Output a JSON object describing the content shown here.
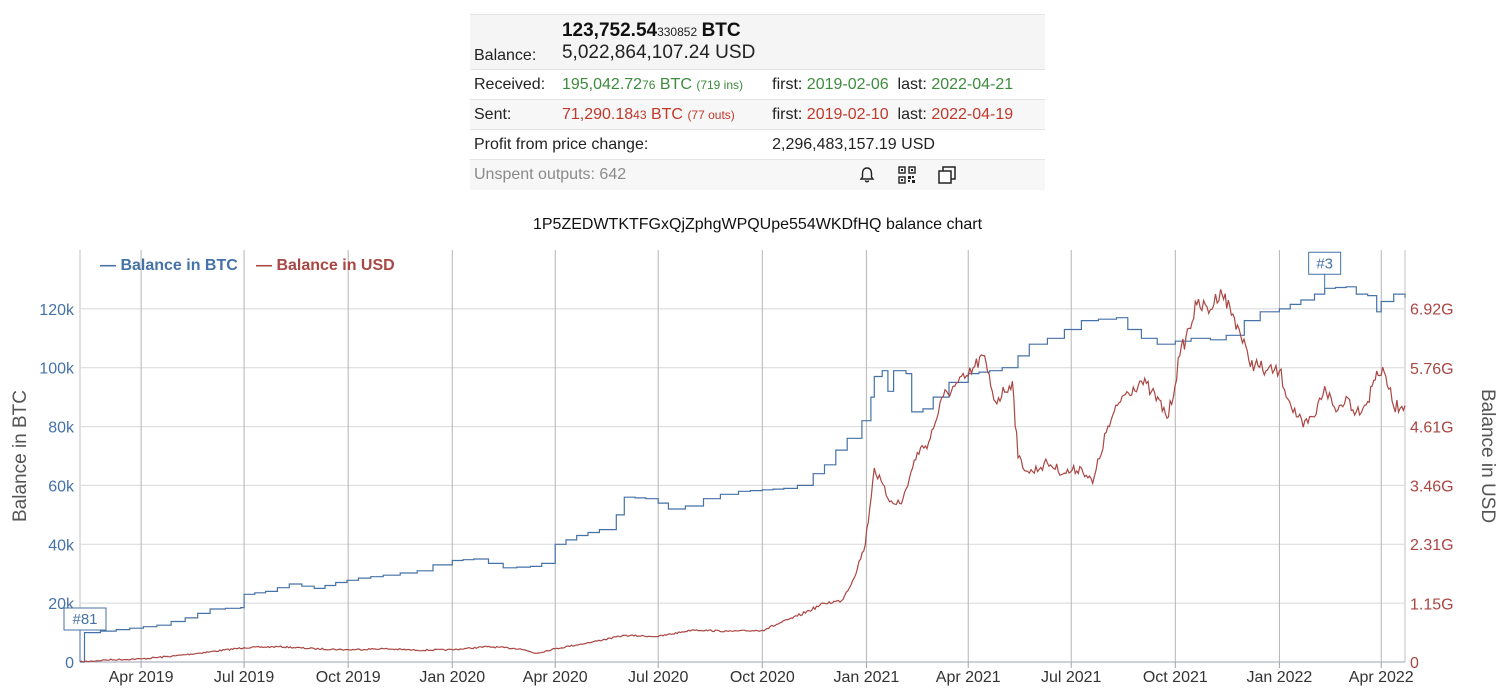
{
  "summary": {
    "btc_main": "123,752.54",
    "btc_small": "330852",
    "btc_unit": "BTC",
    "balance_label": "Balance:",
    "balance_usd": "5,022,864,107.24 USD",
    "received_label": "Received:",
    "received_main": "195,042.72",
    "received_small": "76",
    "received_unit": "BTC",
    "received_count": "(719 ins)",
    "received_first_label": "first:",
    "received_first": "2019-02-06",
    "received_last_label": "last:",
    "received_last": "2022-04-21",
    "sent_label": "Sent:",
    "sent_main": "71,290.18",
    "sent_small": "43",
    "sent_unit": "BTC",
    "sent_count": "(77 outs)",
    "sent_first_label": "first:",
    "sent_first": "2019-02-10",
    "sent_last_label": "last:",
    "sent_last": "2022-04-19",
    "profit_label": "Profit from price change:",
    "profit_value": "2,296,483,157.19 USD",
    "unspent": "Unspent outputs: 642",
    "icons": [
      "bell-icon",
      "qr-code-icon",
      "copy-icon"
    ]
  },
  "colors": {
    "btc": "#4572a7",
    "usd": "#aa4643",
    "green": "#3d8b3d",
    "red": "#c0392b"
  },
  "chart_data": {
    "type": "line",
    "title": "1P5ZEDWTKTFGxQjZphgWPQUpe554WKDfHQ balance chart",
    "xlabel": "",
    "ylabel_left": "Balance in BTC",
    "ylabel_right": "Balance in USD",
    "x_ticks": [
      "Apr 2019",
      "Jul 2019",
      "Oct 2019",
      "Jan 2020",
      "Apr 2020",
      "Jul 2020",
      "Oct 2020",
      "Jan 2021",
      "Apr 2021",
      "Jul 2021",
      "Oct 2021",
      "Jan 2022",
      "Apr 2022"
    ],
    "x_tick_dates": [
      "2019-04-01",
      "2019-07-01",
      "2019-10-01",
      "2020-01-01",
      "2020-04-01",
      "2020-07-01",
      "2020-10-01",
      "2021-01-01",
      "2021-04-01",
      "2021-07-01",
      "2021-10-01",
      "2022-01-01",
      "2022-04-01"
    ],
    "xlim": [
      "2019-02-06",
      "2022-04-22"
    ],
    "y_left_ticks": [
      "0",
      "20k",
      "40k",
      "60k",
      "80k",
      "100k",
      "120k"
    ],
    "y_left_lim": [
      0,
      140000
    ],
    "y_right_ticks": [
      "0",
      "1.15G",
      "2.31G",
      "3.46G",
      "4.61G",
      "5.76G",
      "6.92G"
    ],
    "y_right_values": [
      0,
      1150000000,
      2310000000,
      3460000000,
      4610000000,
      5760000000,
      6920000000
    ],
    "y_right_lim": [
      0,
      8070000000
    ],
    "legend": "top-left",
    "grid": true,
    "flags": [
      {
        "label": "#81",
        "date": "2019-02-06",
        "series": "Balance in BTC"
      },
      {
        "label": "#3",
        "date": "2022-02-10",
        "series": "Balance in BTC"
      }
    ],
    "series": [
      {
        "name": "Balance in BTC",
        "axis": "left",
        "color": "#4572a7",
        "points": [
          [
            "2019-02-06",
            0
          ],
          [
            "2019-02-10",
            10000
          ],
          [
            "2019-03-10",
            11000
          ],
          [
            "2019-04-15",
            12500
          ],
          [
            "2019-05-10",
            15000
          ],
          [
            "2019-06-01",
            18000
          ],
          [
            "2019-06-28",
            18500
          ],
          [
            "2019-07-01",
            23000
          ],
          [
            "2019-07-20",
            24000
          ],
          [
            "2019-08-10",
            26500
          ],
          [
            "2019-09-01",
            25000
          ],
          [
            "2019-09-20",
            27000
          ],
          [
            "2019-10-10",
            28500
          ],
          [
            "2019-11-01",
            29500
          ],
          [
            "2019-12-01",
            31000
          ],
          [
            "2019-12-15",
            33000
          ],
          [
            "2020-01-01",
            34500
          ],
          [
            "2020-01-20",
            35000
          ],
          [
            "2020-02-15",
            32000
          ],
          [
            "2020-03-10",
            32500
          ],
          [
            "2020-03-20",
            33500
          ],
          [
            "2020-04-01",
            40000
          ],
          [
            "2020-04-20",
            43000
          ],
          [
            "2020-05-10",
            45000
          ],
          [
            "2020-05-25",
            50000
          ],
          [
            "2020-06-01",
            56000
          ],
          [
            "2020-06-20",
            55500
          ],
          [
            "2020-07-01",
            54000
          ],
          [
            "2020-07-10",
            52000
          ],
          [
            "2020-07-25",
            53000
          ],
          [
            "2020-08-10",
            55500
          ],
          [
            "2020-08-25",
            57000
          ],
          [
            "2020-09-10",
            58000
          ],
          [
            "2020-10-01",
            58500
          ],
          [
            "2020-10-20",
            59000
          ],
          [
            "2020-11-01",
            60000
          ],
          [
            "2020-11-15",
            64000
          ],
          [
            "2020-11-25",
            67000
          ],
          [
            "2020-12-05",
            72000
          ],
          [
            "2020-12-15",
            76000
          ],
          [
            "2020-12-28",
            82000
          ],
          [
            "2021-01-05",
            90000
          ],
          [
            "2021-01-08",
            97000
          ],
          [
            "2021-01-15",
            99000
          ],
          [
            "2021-01-20",
            92000
          ],
          [
            "2021-01-25",
            99000
          ],
          [
            "2021-02-05",
            98000
          ],
          [
            "2021-02-10",
            85000
          ],
          [
            "2021-02-20",
            86000
          ],
          [
            "2021-03-01",
            90000
          ],
          [
            "2021-03-15",
            95000
          ],
          [
            "2021-04-01",
            98000
          ],
          [
            "2021-04-20",
            99000
          ],
          [
            "2021-05-01",
            100000
          ],
          [
            "2021-05-15",
            104000
          ],
          [
            "2021-05-25",
            108000
          ],
          [
            "2021-06-10",
            110000
          ],
          [
            "2021-06-25",
            113000
          ],
          [
            "2021-07-10",
            116000
          ],
          [
            "2021-07-25",
            116500
          ],
          [
            "2021-08-10",
            117000
          ],
          [
            "2021-08-20",
            113000
          ],
          [
            "2021-09-01",
            110000
          ],
          [
            "2021-09-15",
            108000
          ],
          [
            "2021-10-01",
            109000
          ],
          [
            "2021-10-15",
            110000
          ],
          [
            "2021-11-01",
            109500
          ],
          [
            "2021-11-15",
            111000
          ],
          [
            "2021-12-01",
            116000
          ],
          [
            "2021-12-15",
            119000
          ],
          [
            "2022-01-01",
            120000
          ],
          [
            "2022-01-20",
            123000
          ],
          [
            "2022-02-01",
            125000
          ],
          [
            "2022-02-10",
            127000
          ],
          [
            "2022-03-01",
            127500
          ],
          [
            "2022-03-10",
            125000
          ],
          [
            "2022-03-20",
            124500
          ],
          [
            "2022-03-28",
            119000
          ],
          [
            "2022-04-01",
            122500
          ],
          [
            "2022-04-12",
            125000
          ],
          [
            "2022-04-22",
            123752
          ]
        ]
      },
      {
        "name": "Balance in USD",
        "axis": "right",
        "color": "#aa4643",
        "points": [
          [
            "2019-02-06",
            0
          ],
          [
            "2019-03-01",
            40000000
          ],
          [
            "2019-04-01",
            60000000
          ],
          [
            "2019-05-01",
            120000000
          ],
          [
            "2019-06-01",
            200000000
          ],
          [
            "2019-07-01",
            280000000
          ],
          [
            "2019-08-01",
            300000000
          ],
          [
            "2019-09-01",
            260000000
          ],
          [
            "2019-10-01",
            240000000
          ],
          [
            "2019-11-01",
            260000000
          ],
          [
            "2019-12-01",
            230000000
          ],
          [
            "2020-01-01",
            240000000
          ],
          [
            "2020-02-01",
            300000000
          ],
          [
            "2020-03-01",
            260000000
          ],
          [
            "2020-03-15",
            170000000
          ],
          [
            "2020-04-01",
            260000000
          ],
          [
            "2020-05-01",
            380000000
          ],
          [
            "2020-06-01",
            520000000
          ],
          [
            "2020-07-01",
            500000000
          ],
          [
            "2020-08-01",
            630000000
          ],
          [
            "2020-09-01",
            600000000
          ],
          [
            "2020-10-01",
            620000000
          ],
          [
            "2020-11-01",
            900000000
          ],
          [
            "2020-11-25",
            1150000000
          ],
          [
            "2020-12-10",
            1200000000
          ],
          [
            "2020-12-20",
            1600000000
          ],
          [
            "2020-12-31",
            2300000000
          ],
          [
            "2021-01-08",
            3800000000
          ],
          [
            "2021-01-20",
            3200000000
          ],
          [
            "2021-02-01",
            3100000000
          ],
          [
            "2021-02-15",
            4100000000
          ],
          [
            "2021-02-25",
            4300000000
          ],
          [
            "2021-03-10",
            5200000000
          ],
          [
            "2021-03-20",
            5400000000
          ],
          [
            "2021-04-01",
            5600000000
          ],
          [
            "2021-04-14",
            6000000000
          ],
          [
            "2021-04-25",
            5100000000
          ],
          [
            "2021-05-10",
            5500000000
          ],
          [
            "2021-05-15",
            4000000000
          ],
          [
            "2021-05-25",
            3700000000
          ],
          [
            "2021-06-10",
            3900000000
          ],
          [
            "2021-06-25",
            3700000000
          ],
          [
            "2021-07-10",
            3800000000
          ],
          [
            "2021-07-20",
            3500000000
          ],
          [
            "2021-08-01",
            4500000000
          ],
          [
            "2021-08-15",
            5200000000
          ],
          [
            "2021-09-01",
            5500000000
          ],
          [
            "2021-09-10",
            5300000000
          ],
          [
            "2021-09-25",
            4800000000
          ],
          [
            "2021-10-05",
            6000000000
          ],
          [
            "2021-10-20",
            7000000000
          ],
          [
            "2021-11-01",
            6900000000
          ],
          [
            "2021-11-10",
            7300000000
          ],
          [
            "2021-11-25",
            6600000000
          ],
          [
            "2021-12-05",
            5900000000
          ],
          [
            "2021-12-20",
            5700000000
          ],
          [
            "2022-01-01",
            5700000000
          ],
          [
            "2022-01-10",
            5100000000
          ],
          [
            "2022-01-22",
            4600000000
          ],
          [
            "2022-02-01",
            4800000000
          ],
          [
            "2022-02-10",
            5400000000
          ],
          [
            "2022-02-20",
            4900000000
          ],
          [
            "2022-03-01",
            5200000000
          ],
          [
            "2022-03-10",
            4900000000
          ],
          [
            "2022-03-20",
            5100000000
          ],
          [
            "2022-03-28",
            5700000000
          ],
          [
            "2022-04-05",
            5600000000
          ],
          [
            "2022-04-12",
            5000000000
          ],
          [
            "2022-04-22",
            5022000000
          ]
        ]
      }
    ]
  }
}
